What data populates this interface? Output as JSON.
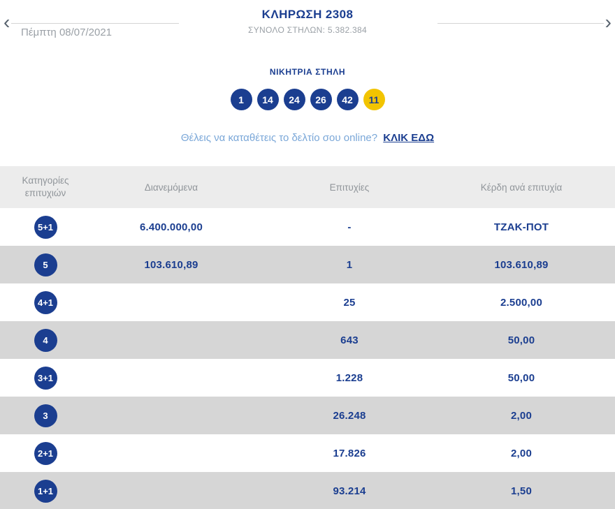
{
  "colors": {
    "primary_blue": "#1b3e90",
    "joker_yellow": "#f2c400",
    "prompt_light_blue": "#7aa7d8",
    "row_gray": "#d6d6d6",
    "header_row_gray": "#ececec",
    "muted_gray_text": "#9aa0a6"
  },
  "header": {
    "prev_arrow": "‹",
    "next_arrow": "›",
    "title": "ΚΛΗΡΩΣΗ 2308",
    "subtitle": "ΣΥΝΟΛΟ ΣΤΗΛΩΝ: 5.382.384",
    "date": "Πέμπτη 08/07/2021"
  },
  "winning": {
    "label": "ΝΙΚΗΤΡΙΑ ΣΤΗΛΗ",
    "numbers": [
      "1",
      "14",
      "24",
      "26",
      "42"
    ],
    "joker": "11"
  },
  "online_prompt": {
    "text": "Θέλεις να καταθέτεις το δελτίο σου online?",
    "link": "ΚΛΙΚ ΕΔΩ"
  },
  "table": {
    "headers": {
      "categories": "Κατηγορίες επιτυχιών",
      "distributed": "Διανεμόμενα",
      "winners": "Επιτυχίες",
      "prize": "Κέρδη ανά επιτυχία"
    },
    "rows": [
      {
        "category": "5+1",
        "distributed": "6.400.000,00",
        "winners": "-",
        "prize": "ΤΖΑΚ-ΠΟΤ"
      },
      {
        "category": "5",
        "distributed": "103.610,89",
        "winners": "1",
        "prize": "103.610,89"
      },
      {
        "category": "4+1",
        "distributed": "",
        "winners": "25",
        "prize": "2.500,00"
      },
      {
        "category": "4",
        "distributed": "",
        "winners": "643",
        "prize": "50,00"
      },
      {
        "category": "3+1",
        "distributed": "",
        "winners": "1.228",
        "prize": "50,00"
      },
      {
        "category": "3",
        "distributed": "",
        "winners": "26.248",
        "prize": "2,00"
      },
      {
        "category": "2+1",
        "distributed": "",
        "winners": "17.826",
        "prize": "2,00"
      },
      {
        "category": "1+1",
        "distributed": "",
        "winners": "93.214",
        "prize": "1,50"
      }
    ]
  }
}
